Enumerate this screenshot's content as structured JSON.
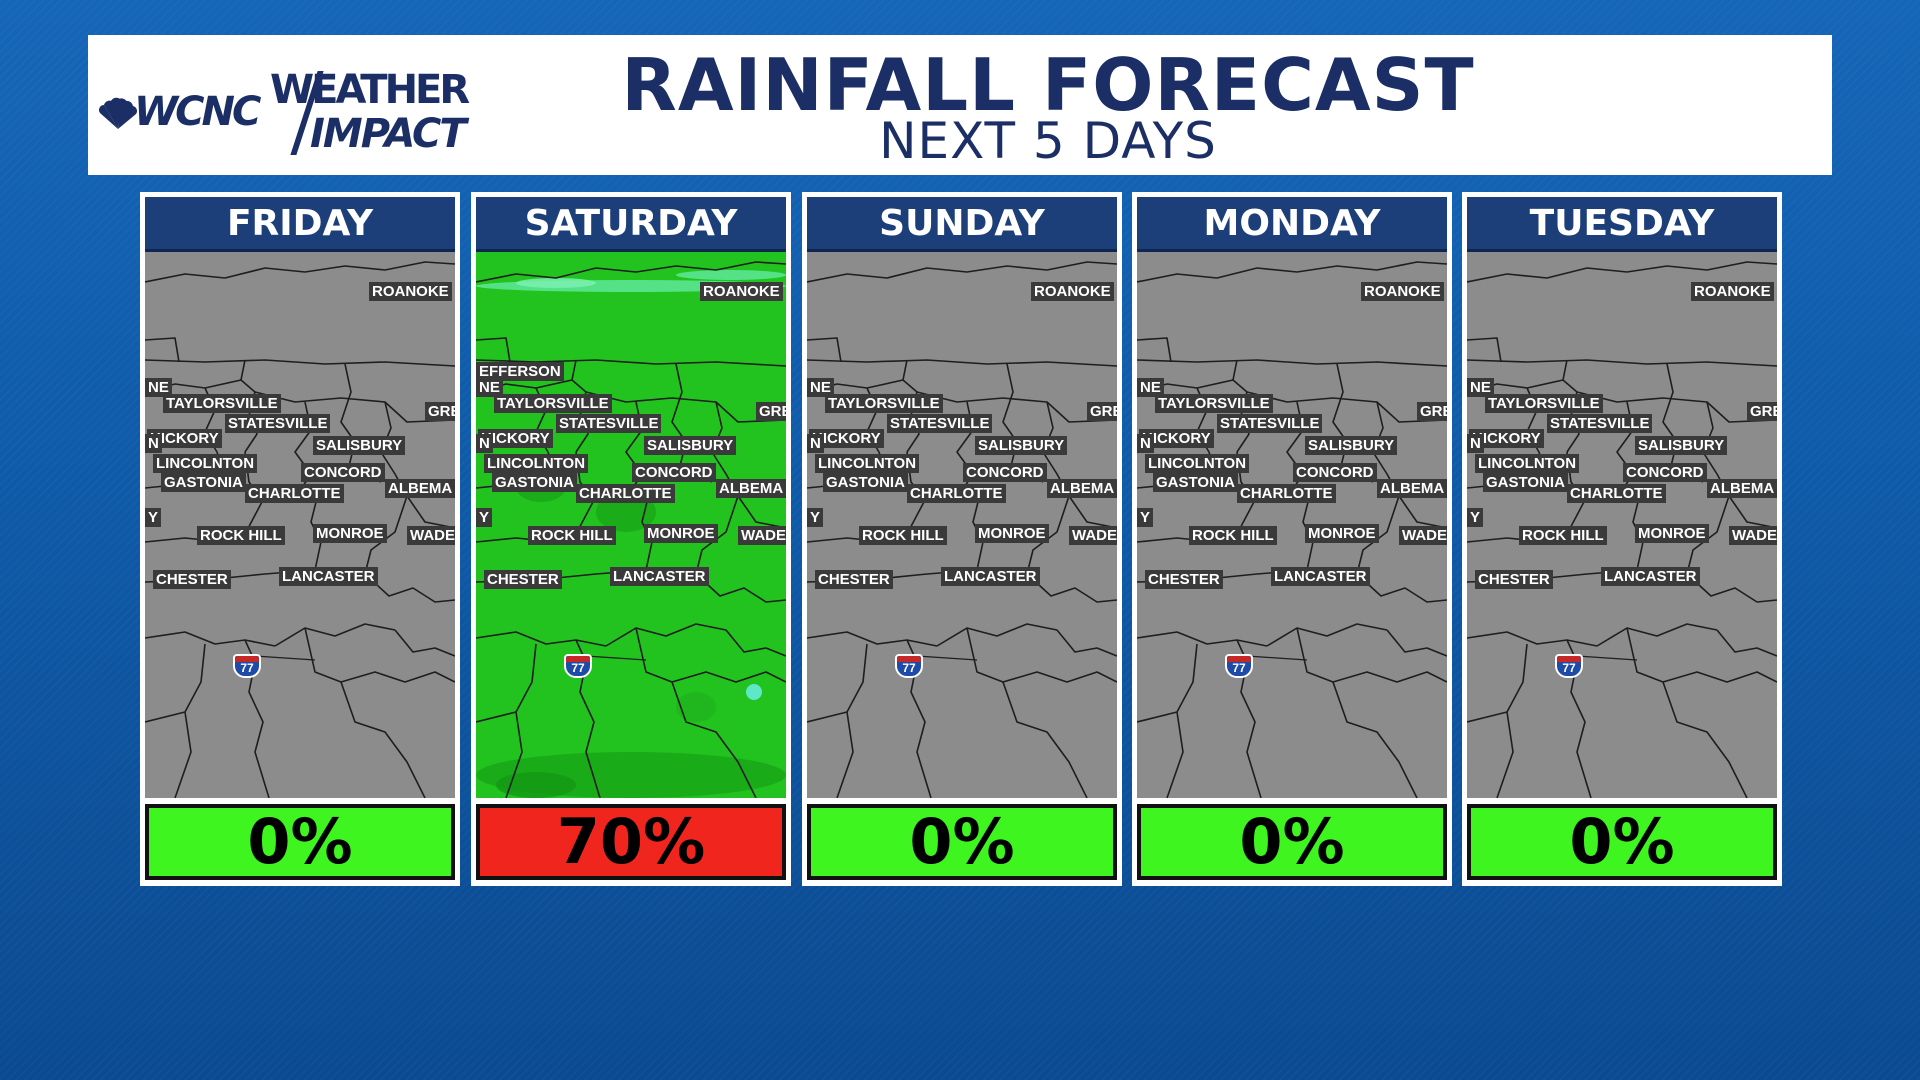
{
  "header": {
    "logo": {
      "station": "WCNC",
      "line1": "WEATHER",
      "line2": "IMPACT"
    },
    "title": "RAINFALL FORECAST",
    "subtitle": "NEXT 5 DAYS"
  },
  "colors": {
    "header_navy": "#1c3f7a",
    "low_chance": "#3ff520",
    "high_chance": "#f0261e",
    "map_gray": "#8c8c8c",
    "rain_green": "#22c21f"
  },
  "interstate": "77",
  "cities": [
    "ROANOKE",
    "TAYLORSVILLE",
    "STATESVILLE",
    "HICKORY",
    "SALISBURY",
    "LINCOLNTON",
    "CONCORD",
    "GASTONIA",
    "CHARLOTTE",
    "ALBEMA",
    "ROCK HILL",
    "MONROE",
    "WADE",
    "CHESTER",
    "LANCASTER"
  ],
  "edge_labels": {
    "left_a": "NE",
    "left_b": "N",
    "left_c": "Y",
    "right_a": "GRE"
  },
  "saturday_extra": {
    "jefferson": "EFFERSON",
    "wades": "WADESI",
    "right": "GRE"
  },
  "days": [
    {
      "name": "FRIDAY",
      "chance": "0%",
      "level": "low",
      "rain": false
    },
    {
      "name": "SATURDAY",
      "chance": "70%",
      "level": "high",
      "rain": true
    },
    {
      "name": "SUNDAY",
      "chance": "0%",
      "level": "low",
      "rain": false
    },
    {
      "name": "MONDAY",
      "chance": "0%",
      "level": "low",
      "rain": false
    },
    {
      "name": "TUESDAY",
      "chance": "0%",
      "level": "low",
      "rain": false
    }
  ]
}
